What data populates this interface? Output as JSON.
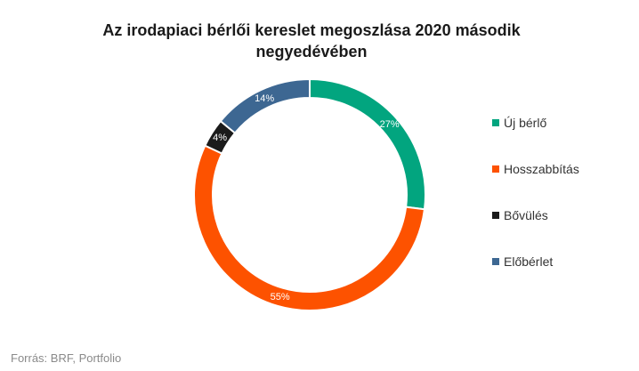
{
  "chart_data": {
    "type": "pie",
    "title": "Az irodapiaci bérlői kereslet megoszlása 2020 második negyedévében",
    "categories": [
      "Új bérlő",
      "Hosszabbítás",
      "Bővülés",
      "Előbérlet"
    ],
    "values": [
      27,
      55,
      4,
      14
    ],
    "labels": [
      "27%",
      "55%",
      "4%",
      "14%"
    ],
    "colors": [
      "#02a57f",
      "#fd5200",
      "#1b1b1b",
      "#3d6792"
    ],
    "donut": true,
    "legend_position": "right",
    "source": "Forrás: BRF, Portfolio"
  }
}
